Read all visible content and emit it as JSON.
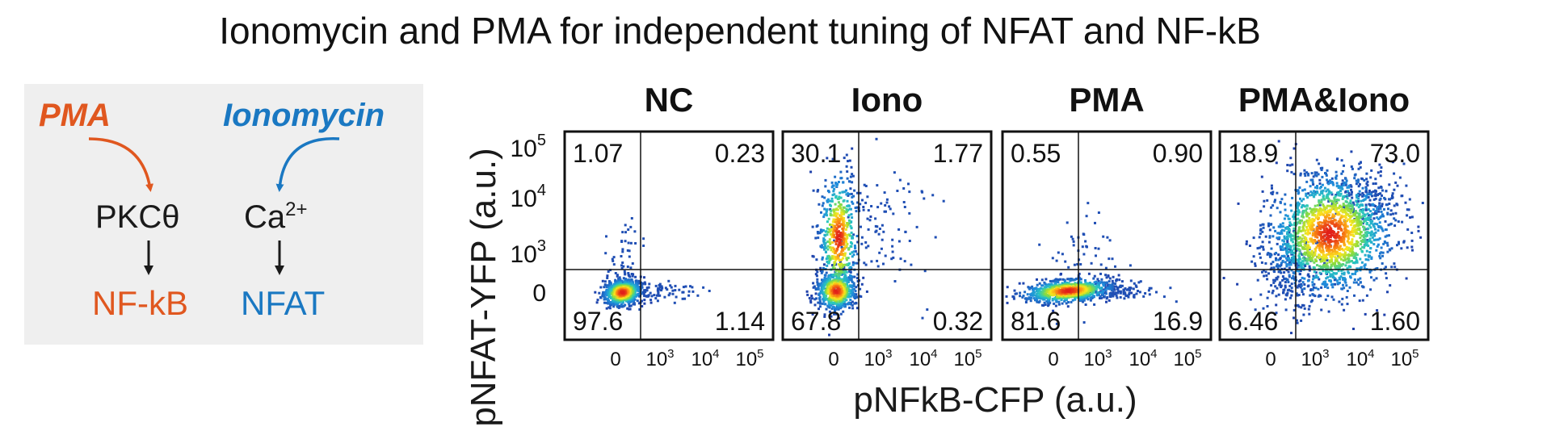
{
  "title": "Ionomycin and PMA for independent tuning of NFAT and NF-kB",
  "schematic": {
    "pma_label": "PMA",
    "ionomycin_label": "Ionomycin",
    "pkc_label": "PKCθ",
    "ca_label": "Ca",
    "ca_superscript": "2+",
    "nfkb_label": "NF-kB",
    "nfat_label": "NFAT",
    "colors": {
      "pma": "#e0571f",
      "ionomycin": "#1a78c2",
      "panel_bg": "#efefef"
    }
  },
  "axes": {
    "ylabel": "pNFAT-YFP (a.u.)",
    "xlabel": "pNFkB-CFP (a.u.)",
    "y_ticks": [
      {
        "base": "10",
        "exp": "5"
      },
      {
        "base": "10",
        "exp": "4"
      },
      {
        "base": "10",
        "exp": "3"
      },
      {
        "base": "0",
        "exp": ""
      }
    ],
    "x_ticks": [
      {
        "base": "0",
        "exp": ""
      },
      {
        "base": "10",
        "exp": "3"
      },
      {
        "base": "10",
        "exp": "4"
      },
      {
        "base": "10",
        "exp": "5"
      }
    ]
  },
  "chart_data": [
    {
      "type": "scatter",
      "title": "NC",
      "quadrants": {
        "upper_left": "1.07",
        "upper_right": "0.23",
        "lower_left": "97.6",
        "lower_right": "1.14"
      }
    },
    {
      "type": "scatter",
      "title": "Iono",
      "quadrants": {
        "upper_left": "30.1",
        "upper_right": "1.77",
        "lower_left": "67.8",
        "lower_right": "0.32"
      }
    },
    {
      "type": "scatter",
      "title": "PMA",
      "quadrants": {
        "upper_left": "0.55",
        "upper_right": "0.90",
        "lower_left": "81.6",
        "lower_right": "16.9"
      }
    },
    {
      "type": "scatter",
      "title": "PMA&Iono",
      "quadrants": {
        "upper_left": "18.9",
        "upper_right": "73.0",
        "lower_left": "6.46",
        "lower_right": "1.60"
      }
    }
  ]
}
